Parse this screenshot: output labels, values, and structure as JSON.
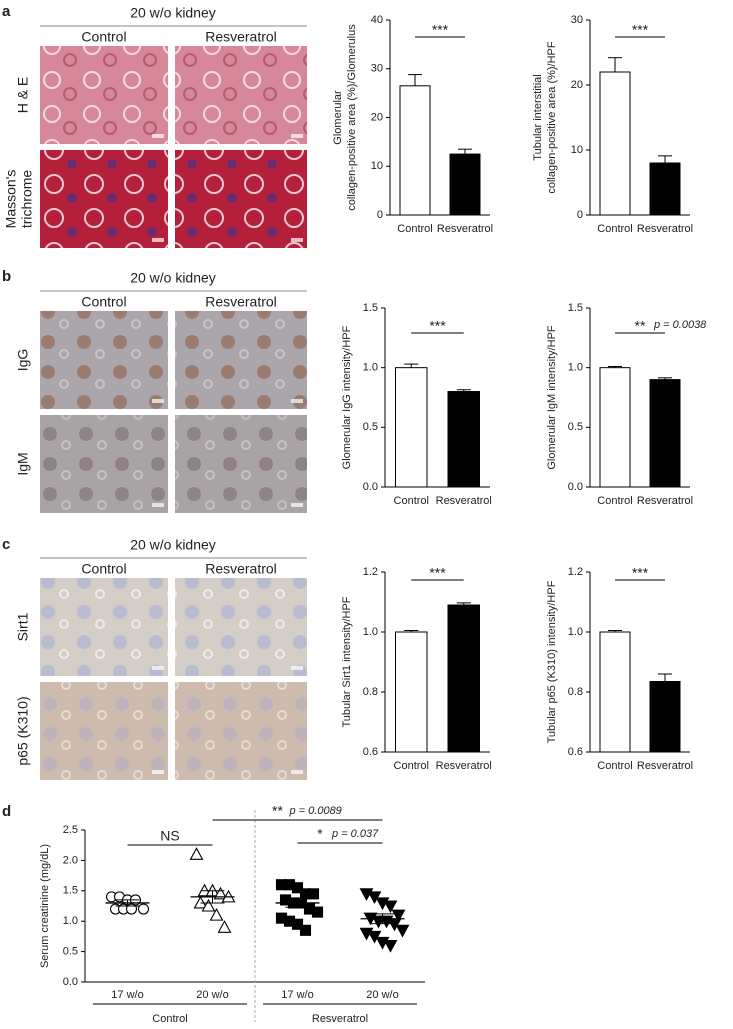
{
  "letters": [
    "a",
    "b",
    "c",
    "d"
  ],
  "micrographs": [
    {
      "title": "20 w/o kidney",
      "columns": [
        "Control",
        "Resveratrol"
      ],
      "rows": [
        [
          "H & E"
        ],
        [
          "Masson's",
          "trichrome"
        ]
      ]
    },
    {
      "title": "20 w/o kidney",
      "columns": [
        "Control",
        "Resveratrol"
      ],
      "rows": [
        [
          "IgG"
        ],
        [
          "IgM"
        ]
      ]
    },
    {
      "title": "20 w/o kidney",
      "columns": [
        "Control",
        "Resveratrol"
      ],
      "rows": [
        [
          "Sirt1"
        ],
        [
          "p65 (K310)"
        ]
      ]
    }
  ],
  "chart_data": [
    {
      "type": "bar",
      "ylabel": [
        "Glomerular",
        "collagen-positive area (%)/Glomerulus"
      ],
      "categories": [
        "Control",
        "Resveratrol"
      ],
      "values": [
        26.5,
        12.5
      ],
      "errors": [
        2.3,
        1.0
      ],
      "colors": [
        "#ffffff",
        "#000000"
      ],
      "ylim": [
        0,
        40
      ],
      "yticks": [
        0,
        10,
        20,
        30,
        40
      ],
      "significance": {
        "stars": "***"
      }
    },
    {
      "type": "bar",
      "ylabel": [
        "Tubular interstitial",
        "collagen-positive area (%)/HPF"
      ],
      "categories": [
        "Control",
        "Resveratrol"
      ],
      "values": [
        22,
        8
      ],
      "errors": [
        2.2,
        1.1
      ],
      "colors": [
        "#ffffff",
        "#000000"
      ],
      "ylim": [
        0,
        30
      ],
      "yticks": [
        0,
        10,
        20,
        30
      ],
      "significance": {
        "stars": "***"
      }
    },
    {
      "type": "bar",
      "ylabel": [
        "Glomerular IgG intensity/HPF"
      ],
      "categories": [
        "Control",
        "Resveratrol"
      ],
      "values": [
        1.0,
        0.8
      ],
      "errors": [
        0.03,
        0.015
      ],
      "colors": [
        "#ffffff",
        "#000000"
      ],
      "ylim": [
        0,
        1.5
      ],
      "yticks": [
        {
          "value": 0,
          "label": "0.0"
        },
        0.5,
        {
          "value": 1,
          "label": "1.0"
        },
        1.5
      ],
      "significance": {
        "stars": "***"
      }
    },
    {
      "type": "bar",
      "ylabel": [
        "Glomerular IgM intensity/HPF"
      ],
      "categories": [
        "Control",
        "Resveratrol"
      ],
      "values": [
        1.0,
        0.9
      ],
      "errors": [
        0.01,
        0.015
      ],
      "colors": [
        "#ffffff",
        "#000000"
      ],
      "ylim": [
        0,
        1.5
      ],
      "yticks": [
        {
          "value": 0,
          "label": "0.0"
        },
        0.5,
        {
          "value": 1,
          "label": "1.0"
        },
        1.5
      ],
      "significance": {
        "stars": "**",
        "p": "p = 0.0038"
      }
    },
    {
      "type": "bar",
      "ylabel": [
        "Tubular Sirt1 intensity/HPF"
      ],
      "categories": [
        "Control",
        "Resveratrol"
      ],
      "values": [
        1.0,
        1.09
      ],
      "errors": [
        0.005,
        0.007
      ],
      "colors": [
        "#ffffff",
        "#000000"
      ],
      "ylim": [
        0.6,
        1.2
      ],
      "yticks": [
        0.6,
        0.8,
        {
          "value": 1,
          "label": "1.0"
        },
        1.2
      ],
      "significance": {
        "stars": "***"
      }
    },
    {
      "type": "bar",
      "ylabel": [
        "Tubular p65 (K310) intensity/HPF"
      ],
      "categories": [
        "Control",
        "Resveratrol"
      ],
      "values": [
        1.0,
        0.835
      ],
      "errors": [
        0.005,
        0.025
      ],
      "colors": [
        "#ffffff",
        "#000000"
      ],
      "ylim": [
        0.6,
        1.2
      ],
      "yticks": [
        0.6,
        0.8,
        {
          "value": 1,
          "label": "1.0"
        },
        1.2
      ],
      "significance": {
        "stars": "***"
      }
    },
    {
      "type": "dot",
      "ylabel": [
        "Serum creatinine (mg/dL)"
      ],
      "categories": [
        "17 w/o",
        "20 w/o",
        "17 w/o",
        "20 w/o"
      ],
      "groups": [
        "Control",
        "Resveratrol"
      ],
      "markers": [
        "circle",
        "triangle-up",
        "square",
        "triangle-down"
      ],
      "fills": [
        "#ffffff",
        "#ffffff",
        "#000000",
        "#000000"
      ],
      "points": [
        [
          1.4,
          1.4,
          1.35,
          1.35,
          1.2,
          1.2,
          1.2,
          1.2
        ],
        [
          2.1,
          1.5,
          1.5,
          1.45,
          1.4,
          1.3,
          1.25,
          1.1,
          0.9
        ],
        [
          1.6,
          1.6,
          1.55,
          1.45,
          1.45,
          1.35,
          1.3,
          1.3,
          1.2,
          1.15,
          1.05,
          1.0,
          0.95,
          0.85
        ],
        [
          1.45,
          1.4,
          1.3,
          1.25,
          1.1,
          1.05,
          1.0,
          1.0,
          0.95,
          0.85,
          0.8,
          0.75,
          0.65,
          0.6
        ]
      ],
      "means": [
        1.3,
        1.4,
        1.3,
        1.04
      ],
      "sems": [
        0.05,
        0.1,
        0.07,
        0.08
      ],
      "ylim": [
        0,
        2.5
      ],
      "yticks": [
        {
          "value": 0,
          "label": "0.0"
        },
        0.5,
        {
          "value": 1,
          "label": "1.0"
        },
        1.5,
        {
          "value": 2,
          "label": "2.0"
        },
        2.5
      ],
      "comparisons": [
        {
          "from": 0,
          "to": 1,
          "stars": "NS"
        },
        {
          "from": 1,
          "to": 3,
          "stars": "**",
          "p": "p = 0.0089"
        },
        {
          "from": 2,
          "to": 3,
          "stars": "*",
          "p": "p = 0.037"
        }
      ]
    }
  ]
}
